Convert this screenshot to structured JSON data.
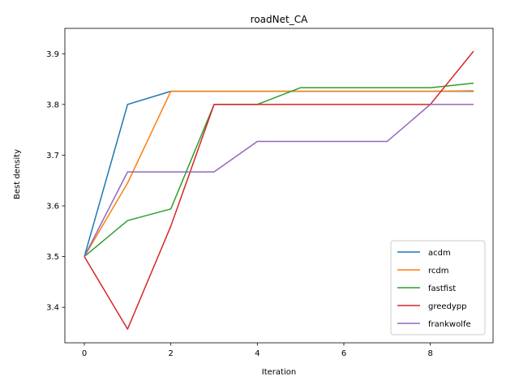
{
  "chart_data": {
    "type": "line",
    "title": "roadNet_CA",
    "xlabel": "Iteration",
    "ylabel": "Best density",
    "xlim": [
      -0.45,
      9.45
    ],
    "ylim": [
      3.33,
      3.95
    ],
    "xticks": [
      0,
      2,
      4,
      6,
      8
    ],
    "xtick_labels": [
      "0",
      "2",
      "4",
      "6",
      "8"
    ],
    "yticks": [
      3.4,
      3.5,
      3.6,
      3.7,
      3.8,
      3.9
    ],
    "ytick_labels": [
      "3.4",
      "3.5",
      "3.6",
      "3.7",
      "3.8",
      "3.9"
    ],
    "grid": false,
    "legend_position": "lower-right",
    "x": [
      0,
      1,
      2,
      3,
      4,
      5,
      6,
      7,
      8,
      9
    ],
    "series": [
      {
        "name": "acdm",
        "color": "#1f77b4",
        "values": [
          3.5,
          3.8,
          3.826,
          3.826,
          3.826,
          3.826,
          3.826,
          3.826,
          3.826,
          3.826
        ]
      },
      {
        "name": "rcdm",
        "color": "#ff7f0e",
        "values": [
          3.5,
          3.645,
          3.826,
          3.826,
          3.826,
          3.826,
          3.826,
          3.826,
          3.826,
          3.827
        ]
      },
      {
        "name": "fastfist",
        "color": "#2ca02c",
        "values": [
          3.5,
          3.571,
          3.594,
          3.8,
          3.8,
          3.833,
          3.833,
          3.833,
          3.833,
          3.842
        ]
      },
      {
        "name": "greedypp",
        "color": "#d62728",
        "values": [
          3.5,
          3.357,
          3.56,
          3.8,
          3.8,
          3.8,
          3.8,
          3.8,
          3.8,
          3.905
        ]
      },
      {
        "name": "frankwolfe",
        "color": "#9467bd",
        "values": [
          3.5,
          3.667,
          3.667,
          3.667,
          3.727,
          3.727,
          3.727,
          3.727,
          3.8,
          3.8
        ]
      }
    ]
  }
}
